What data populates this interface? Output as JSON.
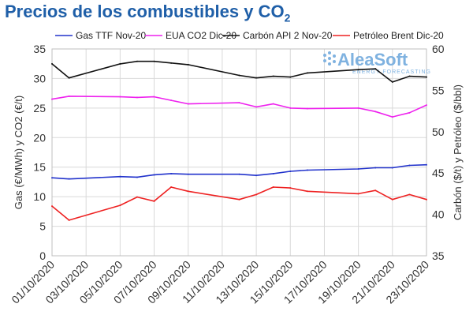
{
  "title_main": "Precios de los combustibles y CO",
  "title_sub": "2",
  "watermark": {
    "brand": "AleaSoft",
    "tagline": "ENERGY FORECASTING"
  },
  "chart_data": {
    "type": "line",
    "x": [
      "01/10/2020",
      "02/10/2020",
      "05/10/2020",
      "06/10/2020",
      "07/10/2020",
      "08/10/2020",
      "09/10/2020",
      "12/10/2020",
      "13/10/2020",
      "14/10/2020",
      "15/10/2020",
      "16/10/2020",
      "19/10/2020",
      "20/10/2020",
      "21/10/2020",
      "22/10/2020",
      "23/10/2020"
    ],
    "x_ticks": [
      "01/10/2020",
      "03/10/2020",
      "05/10/2020",
      "07/10/2020",
      "09/10/2020",
      "11/10/2020",
      "13/10/2020",
      "15/10/2020",
      "17/10/2020",
      "19/10/2020",
      "21/10/2020",
      "23/10/2020"
    ],
    "x_range": [
      "01/10/2020",
      "23/10/2020"
    ],
    "ylabel": "Gas (€/MWh) y CO2 (€/t)",
    "ylim": [
      0,
      35
    ],
    "yticks": [
      0,
      5,
      10,
      15,
      20,
      25,
      30,
      35
    ],
    "y2label": "Carbón ($/t) y Petróleo ($/bbl)",
    "y2lim": [
      35,
      60
    ],
    "y2ticks": [
      35,
      40,
      45,
      50,
      55,
      60
    ],
    "grid": true,
    "legend_position": "top",
    "series": [
      {
        "name": "Gas TTF Nov-20",
        "axis": "left",
        "color": "#2233cc",
        "values": [
          13.2,
          13.0,
          13.4,
          13.3,
          13.7,
          13.9,
          13.8,
          13.8,
          13.6,
          13.9,
          14.3,
          14.5,
          14.7,
          14.9,
          14.9,
          15.3,
          15.4
        ]
      },
      {
        "name": "EUA CO2 Dic-20",
        "axis": "left",
        "color": "#ee22ee",
        "values": [
          26.5,
          27.0,
          26.9,
          26.8,
          26.9,
          26.3,
          25.7,
          25.9,
          25.2,
          25.7,
          25.0,
          24.9,
          25.0,
          24.4,
          23.5,
          24.2,
          25.5
        ]
      },
      {
        "name": "Carbón API 2 Nov-20",
        "axis": "right",
        "color": "#111111",
        "values": [
          58.2,
          56.5,
          58.2,
          58.5,
          58.5,
          58.3,
          58.1,
          56.8,
          56.5,
          56.7,
          56.6,
          57.1,
          57.5,
          57.6,
          56.0,
          56.7,
          56.6
        ]
      },
      {
        "name": "Petróleo Brent Dic-20",
        "axis": "right",
        "color": "#ee2222",
        "values": [
          41.0,
          39.3,
          41.1,
          42.1,
          41.6,
          43.3,
          42.8,
          41.8,
          42.4,
          43.3,
          43.2,
          42.8,
          42.5,
          42.9,
          41.8,
          42.4,
          41.8
        ]
      }
    ]
  }
}
